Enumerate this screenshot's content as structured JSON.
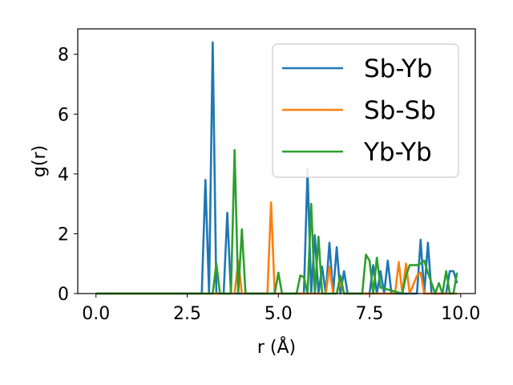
{
  "chart_data": {
    "type": "line",
    "xlabel": "r (Å)",
    "ylabel": "g(r)",
    "xlim": [
      -0.5,
      10.4
    ],
    "ylim": [
      0,
      8.85
    ],
    "xticks": [
      "0.0",
      "2.5",
      "5.0",
      "7.5",
      "10.0"
    ],
    "yticks": [
      "0",
      "2",
      "4",
      "6",
      "8"
    ],
    "legend_position": "top-right",
    "grid": false,
    "series": [
      {
        "name": "Sb-Yb",
        "color": "#1f77b4",
        "x": [
          0.0,
          2.9,
          3.0,
          3.1,
          3.2,
          3.3,
          3.5,
          3.6,
          3.7,
          5.7,
          5.8,
          5.9,
          6.0,
          6.1,
          6.2,
          6.3,
          6.4,
          6.5,
          6.6,
          6.7,
          6.8,
          6.9,
          7.0,
          7.5,
          7.6,
          7.7,
          7.8,
          7.9,
          8.0,
          8.1,
          8.2,
          8.8,
          8.9,
          9.0,
          9.1,
          9.2,
          9.3,
          9.6,
          9.7,
          9.8,
          9.9
        ],
        "y": [
          0,
          0,
          3.8,
          0,
          8.4,
          0,
          0,
          2.7,
          0,
          0,
          4.15,
          0,
          1.95,
          0,
          0.9,
          0,
          1.7,
          0,
          1.55,
          0,
          0.75,
          0,
          0,
          0,
          0.95,
          0,
          0.75,
          0,
          1.1,
          0,
          0,
          0,
          1.8,
          0,
          1.7,
          0,
          0,
          0,
          0.75,
          0.75,
          0.35
        ]
      },
      {
        "name": "Sb-Sb",
        "color": "#ff7f0e",
        "x": [
          0.0,
          3.7,
          3.8,
          3.9,
          4.0,
          4.7,
          4.8,
          4.9,
          6.2,
          6.3,
          6.4,
          6.5,
          6.6,
          6.7,
          6.8,
          8.1,
          8.2,
          8.3,
          8.4,
          8.5,
          8.6,
          8.8,
          8.9,
          9.0,
          9.8,
          9.9
        ],
        "y": [
          0,
          0,
          0,
          1.1,
          0,
          0,
          3.05,
          0,
          0,
          0,
          0.9,
          0,
          0,
          0.4,
          0,
          0,
          0,
          1.05,
          0,
          1.0,
          0,
          0.6,
          0.7,
          0,
          0,
          0
        ]
      },
      {
        "name": "Yb-Yb",
        "color": "#2ca02c",
        "x": [
          0.0,
          3.2,
          3.3,
          3.4,
          3.7,
          3.8,
          3.9,
          4.0,
          4.1,
          4.9,
          5.0,
          5.1,
          5.5,
          5.6,
          5.7,
          5.8,
          5.9,
          6.0,
          6.1,
          6.2,
          6.5,
          6.6,
          6.7,
          6.8,
          7.3,
          7.4,
          7.5,
          7.6,
          7.7,
          7.8,
          8.4,
          8.5,
          8.6,
          8.7,
          8.8,
          8.9,
          9.0,
          9.1,
          9.3,
          9.4,
          9.5,
          9.6,
          9.7,
          9.8,
          9.9
        ],
        "y": [
          0,
          0,
          1.0,
          0,
          0,
          4.8,
          0,
          2.15,
          0,
          0,
          0.7,
          0,
          0,
          0.6,
          0.55,
          0,
          3.0,
          0,
          1.9,
          0,
          0,
          0,
          0.6,
          0,
          0,
          1.3,
          1.1,
          0,
          1.2,
          0.2,
          0,
          0.6,
          0.95,
          0.95,
          0.95,
          1.0,
          1.1,
          0.7,
          0,
          0.35,
          0,
          0.75,
          0,
          0,
          0.7
        ]
      }
    ]
  }
}
